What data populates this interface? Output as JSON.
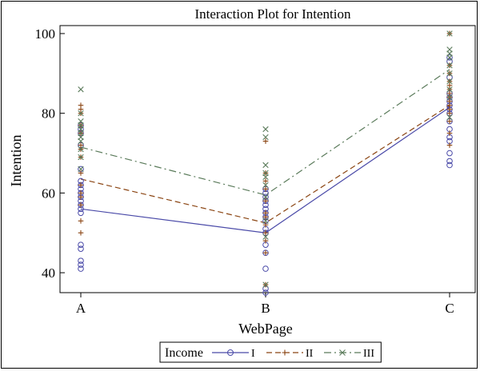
{
  "chart_data": {
    "type": "line",
    "title": "Interaction Plot for Intention",
    "xlabel": "WebPage",
    "ylabel": "Intention",
    "categories": [
      "A",
      "B",
      "C"
    ],
    "ylim": [
      35,
      102
    ],
    "yticks": [
      40,
      60,
      80,
      100
    ],
    "grid": false,
    "legend": {
      "title": "Income",
      "placement": "bottom"
    },
    "series": [
      {
        "name": "I",
        "color": "#4a4aa8",
        "marker": "circle",
        "dash": "solid",
        "means": [
          56,
          50,
          81.5
        ],
        "points": [
          [
            41,
            42,
            43,
            46,
            47,
            55,
            56,
            57,
            58,
            59,
            60,
            61,
            62,
            63,
            66,
            72,
            75,
            76,
            77
          ],
          [
            35,
            36,
            41,
            45,
            47,
            50,
            51,
            53,
            54,
            55,
            56,
            57,
            58,
            59,
            60,
            61
          ],
          [
            67,
            68,
            70,
            73,
            74,
            76,
            78,
            80,
            81,
            82,
            83,
            84,
            85,
            89,
            93,
            94
          ]
        ]
      },
      {
        "name": "II",
        "color": "#8b4513",
        "marker": "plus",
        "dash": "dash",
        "means": [
          63.5,
          52.5,
          82
        ],
        "points": [
          [
            50,
            53,
            57,
            59,
            60,
            62,
            65,
            69,
            71,
            72,
            75,
            77,
            80,
            81,
            82
          ],
          [
            37,
            45,
            48,
            50,
            52,
            54,
            55,
            58,
            61,
            63,
            65,
            73
          ],
          [
            72,
            75,
            78,
            80,
            81,
            82,
            83,
            84,
            85,
            86,
            87,
            88,
            90,
            92,
            100
          ]
        ]
      },
      {
        "name": "III",
        "color": "#5b7b5b",
        "marker": "x",
        "dash": "dashdot",
        "means": [
          71.5,
          59.5,
          91
        ],
        "points": [
          [
            66,
            69,
            71,
            73,
            74,
            75,
            76,
            77,
            78,
            80,
            86
          ],
          [
            37,
            49,
            53,
            59,
            62,
            64,
            65,
            67,
            74,
            76
          ],
          [
            79,
            84,
            86,
            88,
            90,
            92,
            94,
            95,
            96,
            100
          ]
        ]
      }
    ]
  }
}
